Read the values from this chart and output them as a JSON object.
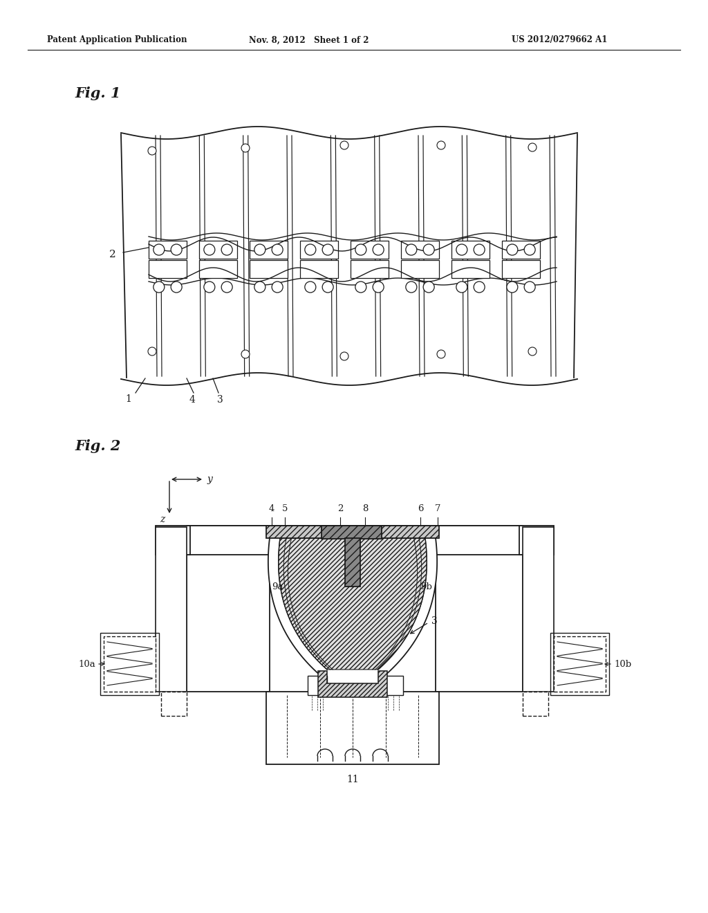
{
  "background_color": "#ffffff",
  "header_left": "Patent Application Publication",
  "header_center": "Nov. 8, 2012   Sheet 1 of 2",
  "header_right": "US 2012/0279662 A1",
  "fig1_label": "Fig. 1",
  "fig2_label": "Fig. 2",
  "lc": "#1a1a1a"
}
